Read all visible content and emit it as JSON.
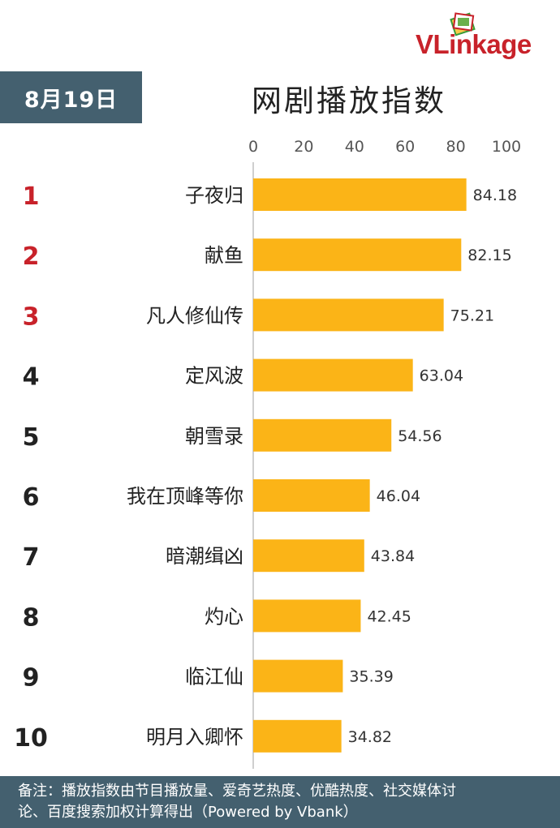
{
  "date_badge": "8月19日",
  "logo": {
    "v": "V",
    "l": "Link",
    "rest": "age",
    "icon": "stack-cards-icon"
  },
  "chart_data": {
    "type": "bar",
    "orientation": "horizontal",
    "title": "网剧播放指数",
    "xlim": [
      0,
      100
    ],
    "xticks": [
      0,
      20,
      40,
      60,
      80,
      100
    ],
    "ranks": [
      "1",
      "2",
      "3",
      "4",
      "5",
      "6",
      "7",
      "8",
      "9",
      "10"
    ],
    "categories": [
      "子夜归",
      "献鱼",
      "凡人修仙传",
      "定风波",
      "朝雪录",
      "我在顶峰等你",
      "暗潮缉凶",
      "灼心",
      "临江仙",
      "明月入卿怀"
    ],
    "values": [
      84.18,
      82.15,
      75.21,
      63.04,
      54.56,
      46.04,
      43.84,
      42.45,
      35.39,
      34.82
    ],
    "value_labels": [
      "84.18",
      "82.15",
      "75.21",
      "63.04",
      "54.56",
      "46.04",
      "43.84",
      "42.45",
      "35.39",
      "34.82"
    ],
    "bar_color": "#fbb417",
    "top_rank_color": "#c8222a",
    "rank_color": "#222222",
    "grid": false
  },
  "footer": {
    "line1": "备注：播放指数由节目播放量、爱奇艺热度、优酷热度、社交媒体讨",
    "line2": "论、百度搜索加权计算得出（Powered by Vbank）"
  }
}
